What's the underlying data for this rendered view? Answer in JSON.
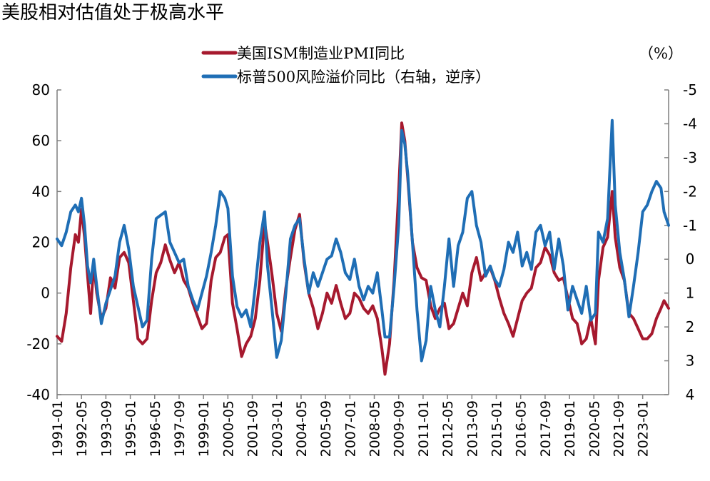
{
  "chart_data": {
    "type": "line",
    "title": "美股相对估值处于极高水平",
    "unit_label": "（%）",
    "legend_position": "top",
    "grid": false,
    "x_range": [
      "1991-01",
      "2024-06"
    ],
    "x_ticks": [
      "1991-01",
      "1992-05",
      "1993-09",
      "1995-01",
      "1996-05",
      "1997-09",
      "1999-01",
      "2000-05",
      "2001-09",
      "2003-01",
      "2004-05",
      "2005-09",
      "2007-01",
      "2008-05",
      "2009-09",
      "2011-01",
      "2012-05",
      "2013-09",
      "2015-01",
      "2016-05",
      "2017-09",
      "2019-01",
      "2020-05",
      "2021-09",
      "2023-01"
    ],
    "y_left": {
      "min": -40,
      "max": 80,
      "ticks": [
        80,
        60,
        40,
        20,
        0,
        -20,
        -40
      ],
      "tick_labels": [
        "80",
        "60",
        "40",
        "20",
        "0",
        "-20",
        "-40"
      ]
    },
    "y_right": {
      "min": -5,
      "max": 4,
      "inverted": true,
      "ticks": [
        -5,
        -4,
        -3,
        -2,
        -1,
        0,
        1,
        2,
        3,
        4
      ],
      "tick_labels": [
        "-5",
        "-4",
        "-3",
        "-2",
        "-1",
        "0",
        "1",
        "2",
        "3",
        "4"
      ]
    },
    "series": [
      {
        "name": "美国ISM制造业PMI同比",
        "axis": "left",
        "color": "#A6192E",
        "points": [
          [
            "1991-01",
            -17
          ],
          [
            "1991-04",
            -19
          ],
          [
            "1991-07",
            -8
          ],
          [
            "1991-10",
            10
          ],
          [
            "1992-01",
            23
          ],
          [
            "1992-03",
            20
          ],
          [
            "1992-05",
            33
          ],
          [
            "1992-07",
            22
          ],
          [
            "1992-09",
            7
          ],
          [
            "1992-11",
            -8
          ],
          [
            "1993-01",
            12
          ],
          [
            "1993-03",
            0
          ],
          [
            "1993-06",
            -10
          ],
          [
            "1993-09",
            -6
          ],
          [
            "1993-12",
            6
          ],
          [
            "1994-03",
            2
          ],
          [
            "1994-06",
            14
          ],
          [
            "1994-09",
            16
          ],
          [
            "1994-12",
            12
          ],
          [
            "1995-03",
            -3
          ],
          [
            "1995-06",
            -18
          ],
          [
            "1995-09",
            -20
          ],
          [
            "1995-12",
            -18
          ],
          [
            "1996-03",
            -3
          ],
          [
            "1996-06",
            8
          ],
          [
            "1996-09",
            12
          ],
          [
            "1996-12",
            19
          ],
          [
            "1997-03",
            13
          ],
          [
            "1997-06",
            8
          ],
          [
            "1997-09",
            12
          ],
          [
            "1997-12",
            5
          ],
          [
            "1998-03",
            2
          ],
          [
            "1998-06",
            -4
          ],
          [
            "1998-09",
            -9
          ],
          [
            "1998-12",
            -14
          ],
          [
            "1999-03",
            -12
          ],
          [
            "1999-06",
            5
          ],
          [
            "1999-09",
            14
          ],
          [
            "1999-12",
            16
          ],
          [
            "2000-03",
            22
          ],
          [
            "2000-05",
            23
          ],
          [
            "2000-08",
            -4
          ],
          [
            "2000-11",
            -14
          ],
          [
            "2001-02",
            -25
          ],
          [
            "2001-05",
            -20
          ],
          [
            "2001-08",
            -17
          ],
          [
            "2001-11",
            -10
          ],
          [
            "2002-02",
            5
          ],
          [
            "2002-05",
            28
          ],
          [
            "2002-07",
            20
          ],
          [
            "2002-10",
            7
          ],
          [
            "2003-01",
            -8
          ],
          [
            "2003-04",
            -15
          ],
          [
            "2003-07",
            2
          ],
          [
            "2003-10",
            14
          ],
          [
            "2004-01",
            25
          ],
          [
            "2004-04",
            31
          ],
          [
            "2004-07",
            12
          ],
          [
            "2004-10",
            0
          ],
          [
            "2005-01",
            -6
          ],
          [
            "2005-04",
            -14
          ],
          [
            "2005-07",
            -8
          ],
          [
            "2005-10",
            0
          ],
          [
            "2006-01",
            -4
          ],
          [
            "2006-04",
            3
          ],
          [
            "2006-07",
            -4
          ],
          [
            "2006-10",
            -10
          ],
          [
            "2007-01",
            -8
          ],
          [
            "2007-04",
            0
          ],
          [
            "2007-07",
            -2
          ],
          [
            "2007-10",
            -6
          ],
          [
            "2008-01",
            -8
          ],
          [
            "2008-04",
            -5
          ],
          [
            "2008-07",
            -10
          ],
          [
            "2008-10",
            -22
          ],
          [
            "2008-12",
            -32
          ],
          [
            "2009-03",
            -20
          ],
          [
            "2009-06",
            5
          ],
          [
            "2009-09",
            40
          ],
          [
            "2009-11",
            67
          ],
          [
            "2010-01",
            60
          ],
          [
            "2010-03",
            45
          ],
          [
            "2010-06",
            20
          ],
          [
            "2010-09",
            10
          ],
          [
            "2010-12",
            6
          ],
          [
            "2011-03",
            5
          ],
          [
            "2011-06",
            -5
          ],
          [
            "2011-09",
            -10
          ],
          [
            "2011-12",
            -6
          ],
          [
            "2012-03",
            -4
          ],
          [
            "2012-06",
            -14
          ],
          [
            "2012-09",
            -12
          ],
          [
            "2012-12",
            -6
          ],
          [
            "2013-03",
            0
          ],
          [
            "2013-06",
            -5
          ],
          [
            "2013-09",
            8
          ],
          [
            "2013-12",
            14
          ],
          [
            "2014-03",
            5
          ],
          [
            "2014-06",
            8
          ],
          [
            "2014-09",
            10
          ],
          [
            "2014-12",
            5
          ],
          [
            "2015-03",
            -2
          ],
          [
            "2015-06",
            -8
          ],
          [
            "2015-09",
            -12
          ],
          [
            "2015-12",
            -17
          ],
          [
            "2016-03",
            -10
          ],
          [
            "2016-06",
            -3
          ],
          [
            "2016-09",
            0
          ],
          [
            "2016-12",
            2
          ],
          [
            "2017-03",
            10
          ],
          [
            "2017-06",
            12
          ],
          [
            "2017-09",
            18
          ],
          [
            "2017-12",
            15
          ],
          [
            "2018-03",
            8
          ],
          [
            "2018-06",
            5
          ],
          [
            "2018-09",
            6
          ],
          [
            "2018-12",
            -2
          ],
          [
            "2019-03",
            -10
          ],
          [
            "2019-06",
            -12
          ],
          [
            "2019-09",
            -20
          ],
          [
            "2019-12",
            -18
          ],
          [
            "2020-03",
            -10
          ],
          [
            "2020-06",
            -20
          ],
          [
            "2020-08",
            5
          ],
          [
            "2020-11",
            18
          ],
          [
            "2021-02",
            22
          ],
          [
            "2021-05",
            40
          ],
          [
            "2021-07",
            22
          ],
          [
            "2021-10",
            10
          ],
          [
            "2022-01",
            5
          ],
          [
            "2022-04",
            -8
          ],
          [
            "2022-07",
            -10
          ],
          [
            "2022-10",
            -14
          ],
          [
            "2023-01",
            -18
          ],
          [
            "2023-04",
            -18
          ],
          [
            "2023-07",
            -16
          ],
          [
            "2023-10",
            -10
          ],
          [
            "2024-01",
            -6
          ],
          [
            "2024-03",
            -3
          ],
          [
            "2024-06",
            -6
          ]
        ]
      },
      {
        "name": "标普500风险溢价同比（右轴，逆序）",
        "axis": "right",
        "color": "#1F6EB5",
        "points": [
          [
            "1991-01",
            -0.6
          ],
          [
            "1991-04",
            -0.4
          ],
          [
            "1991-07",
            -0.8
          ],
          [
            "1991-10",
            -1.4
          ],
          [
            "1992-01",
            -1.6
          ],
          [
            "1992-03",
            -1.4
          ],
          [
            "1992-05",
            -1.8
          ],
          [
            "1992-07",
            -1.0
          ],
          [
            "1992-09",
            0.2
          ],
          [
            "1992-11",
            0.7
          ],
          [
            "1993-01",
            0.0
          ],
          [
            "1993-03",
            0.8
          ],
          [
            "1993-06",
            1.9
          ],
          [
            "1993-09",
            1.3
          ],
          [
            "1993-12",
            0.9
          ],
          [
            "1994-03",
            0.5
          ],
          [
            "1994-06",
            -0.5
          ],
          [
            "1994-09",
            -1.0
          ],
          [
            "1994-12",
            -0.3
          ],
          [
            "1995-03",
            0.8
          ],
          [
            "1995-06",
            1.4
          ],
          [
            "1995-09",
            2.0
          ],
          [
            "1995-12",
            1.8
          ],
          [
            "1996-03",
            0.0
          ],
          [
            "1996-06",
            -1.2
          ],
          [
            "1996-09",
            -1.3
          ],
          [
            "1996-12",
            -1.4
          ],
          [
            "1997-03",
            -0.5
          ],
          [
            "1997-06",
            -0.2
          ],
          [
            "1997-09",
            0.1
          ],
          [
            "1997-12",
            0.0
          ],
          [
            "1998-03",
            0.8
          ],
          [
            "1998-06",
            1.2
          ],
          [
            "1998-09",
            1.5
          ],
          [
            "1998-12",
            1.0
          ],
          [
            "1999-03",
            0.5
          ],
          [
            "1999-06",
            -0.2
          ],
          [
            "1999-09",
            -1.0
          ],
          [
            "1999-12",
            -2.0
          ],
          [
            "2000-03",
            -1.8
          ],
          [
            "2000-05",
            -1.5
          ],
          [
            "2000-08",
            0.5
          ],
          [
            "2000-11",
            1.4
          ],
          [
            "2001-02",
            1.7
          ],
          [
            "2001-05",
            1.5
          ],
          [
            "2001-08",
            2.0
          ],
          [
            "2001-11",
            0.8
          ],
          [
            "2002-02",
            -0.5
          ],
          [
            "2002-05",
            -1.4
          ],
          [
            "2002-07",
            0.2
          ],
          [
            "2002-10",
            1.5
          ],
          [
            "2003-01",
            2.9
          ],
          [
            "2003-04",
            2.4
          ],
          [
            "2003-07",
            1.0
          ],
          [
            "2003-10",
            -0.6
          ],
          [
            "2004-01",
            -1.0
          ],
          [
            "2004-04",
            -1.2
          ],
          [
            "2004-07",
            0.0
          ],
          [
            "2004-10",
            1.0
          ],
          [
            "2005-01",
            0.4
          ],
          [
            "2005-04",
            0.8
          ],
          [
            "2005-07",
            0.4
          ],
          [
            "2005-10",
            0.0
          ],
          [
            "2006-01",
            -0.1
          ],
          [
            "2006-04",
            -0.6
          ],
          [
            "2006-07",
            -0.2
          ],
          [
            "2006-10",
            0.4
          ],
          [
            "2007-01",
            0.6
          ],
          [
            "2007-04",
            0.0
          ],
          [
            "2007-07",
            0.8
          ],
          [
            "2007-10",
            1.2
          ],
          [
            "2008-01",
            0.8
          ],
          [
            "2008-04",
            1.0
          ],
          [
            "2008-07",
            0.4
          ],
          [
            "2008-10",
            1.5
          ],
          [
            "2008-12",
            2.3
          ],
          [
            "2009-03",
            2.3
          ],
          [
            "2009-06",
            0.8
          ],
          [
            "2009-09",
            -1.0
          ],
          [
            "2009-11",
            -3.8
          ],
          [
            "2010-01",
            -3.4
          ],
          [
            "2010-03",
            -2.5
          ],
          [
            "2010-06",
            -0.5
          ],
          [
            "2010-09",
            1.5
          ],
          [
            "2010-12",
            3.0
          ],
          [
            "2011-03",
            2.4
          ],
          [
            "2011-06",
            0.8
          ],
          [
            "2011-09",
            1.5
          ],
          [
            "2011-12",
            2.0
          ],
          [
            "2012-03",
            0.8
          ],
          [
            "2012-06",
            -0.6
          ],
          [
            "2012-09",
            0.8
          ],
          [
            "2012-12",
            -0.4
          ],
          [
            "2013-03",
            -0.8
          ],
          [
            "2013-06",
            -1.8
          ],
          [
            "2013-09",
            -2.0
          ],
          [
            "2013-12",
            -1.0
          ],
          [
            "2014-03",
            -0.5
          ],
          [
            "2014-06",
            0.5
          ],
          [
            "2014-09",
            0.2
          ],
          [
            "2014-12",
            0.6
          ],
          [
            "2015-03",
            0.8
          ],
          [
            "2015-06",
            0.3
          ],
          [
            "2015-09",
            -0.5
          ],
          [
            "2015-12",
            -0.2
          ],
          [
            "2016-03",
            -0.8
          ],
          [
            "2016-06",
            0.2
          ],
          [
            "2016-09",
            -0.2
          ],
          [
            "2016-12",
            0.3
          ],
          [
            "2017-03",
            -0.8
          ],
          [
            "2017-06",
            -1.0
          ],
          [
            "2017-09",
            -0.4
          ],
          [
            "2017-12",
            -0.8
          ],
          [
            "2018-03",
            0.3
          ],
          [
            "2018-06",
            -0.6
          ],
          [
            "2018-09",
            0.2
          ],
          [
            "2018-12",
            1.5
          ],
          [
            "2019-03",
            0.8
          ],
          [
            "2019-06",
            1.2
          ],
          [
            "2019-09",
            1.6
          ],
          [
            "2019-12",
            0.8
          ],
          [
            "2020-03",
            1.8
          ],
          [
            "2020-06",
            1.6
          ],
          [
            "2020-08",
            -0.8
          ],
          [
            "2020-11",
            -0.5
          ],
          [
            "2021-02",
            -1.2
          ],
          [
            "2021-05",
            -4.1
          ],
          [
            "2021-07",
            -1.6
          ],
          [
            "2021-10",
            -0.2
          ],
          [
            "2022-01",
            0.6
          ],
          [
            "2022-04",
            1.7
          ],
          [
            "2022-07",
            0.8
          ],
          [
            "2022-10",
            -0.2
          ],
          [
            "2023-01",
            -1.4
          ],
          [
            "2023-04",
            -1.6
          ],
          [
            "2023-07",
            -2.0
          ],
          [
            "2023-10",
            -2.3
          ],
          [
            "2024-01",
            -2.1
          ],
          [
            "2024-03",
            -1.4
          ],
          [
            "2024-06",
            -1.0
          ]
        ]
      }
    ]
  }
}
